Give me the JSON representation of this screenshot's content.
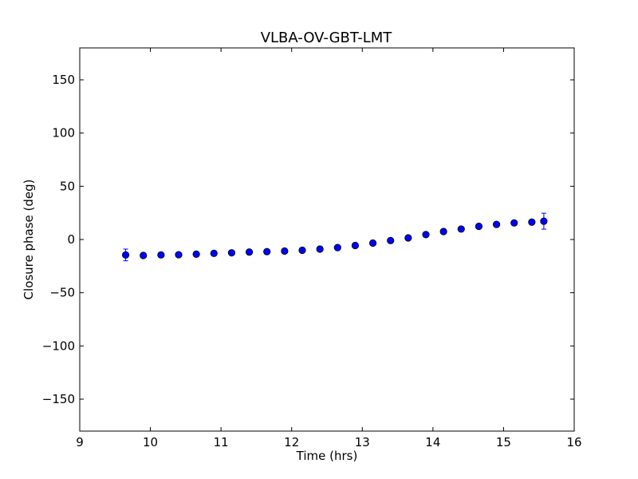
{
  "chart_data": {
    "type": "scatter",
    "title": "VLBA-OV-GBT-LMT",
    "xlabel": "Time (hrs)",
    "ylabel": "Closure phase (deg)",
    "xlim": [
      9,
      16
    ],
    "ylim": [
      -180,
      180
    ],
    "xticks": [
      9,
      10,
      11,
      12,
      13,
      14,
      15,
      16
    ],
    "xtick_labels": [
      "9",
      "10",
      "11",
      "12",
      "13",
      "14",
      "15",
      "16"
    ],
    "yticks": [
      -150,
      -100,
      -50,
      0,
      50,
      100,
      150
    ],
    "ytick_labels": [
      "−150",
      "−100",
      "−50",
      "0",
      "50",
      "100",
      "150"
    ],
    "grid": false,
    "marker_color": "#0000ff",
    "errorbar_color": "#0000ff",
    "series": [
      {
        "x": [
          9.65,
          9.9,
          10.15,
          10.4,
          10.65,
          10.9,
          11.15,
          11.4,
          11.65,
          11.9,
          12.15,
          12.4,
          12.65,
          12.9,
          13.15,
          13.4,
          13.65,
          13.9,
          14.15,
          14.4,
          14.65,
          14.9,
          15.15,
          15.4,
          15.57
        ],
        "y": [
          -14.5,
          -15.0,
          -14.5,
          -14.3,
          -13.8,
          -13.0,
          -12.5,
          -11.8,
          -11.4,
          -10.9,
          -10.1,
          -9.0,
          -7.6,
          -5.6,
          -3.4,
          -1.0,
          1.5,
          4.6,
          7.5,
          9.8,
          12.4,
          14.2,
          15.6,
          16.3,
          17.2
        ],
        "yerr": [
          5.5,
          2.0,
          2.0,
          2.0,
          2.0,
          2.0,
          2.0,
          2.0,
          2.0,
          2.0,
          2.0,
          2.0,
          2.0,
          2.0,
          2.0,
          2.0,
          2.0,
          2.0,
          2.0,
          2.0,
          2.0,
          2.0,
          2.0,
          2.0,
          7.5
        ]
      }
    ]
  }
}
